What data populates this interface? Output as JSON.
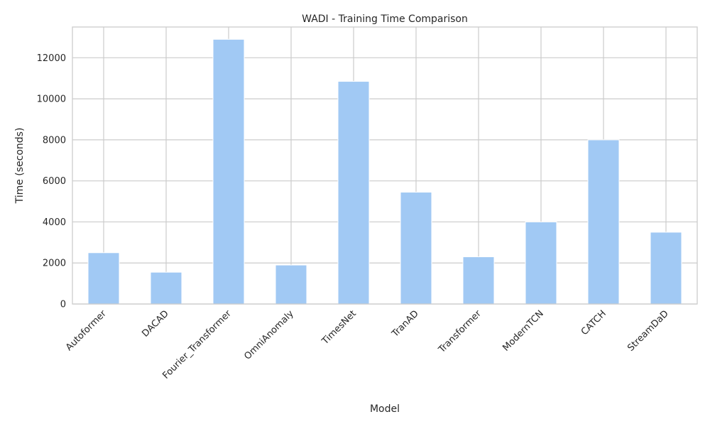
{
  "chart_data": {
    "type": "bar",
    "title": "WADI - Training Time Comparison",
    "xlabel": "Model",
    "ylabel": "Time (seconds)",
    "categories": [
      "Autoformer",
      "DACAD",
      "Fourier_Transformer",
      "OmniAnomaly",
      "TimesNet",
      "TranAD",
      "Transformer",
      "ModernTCN",
      "CATCH",
      "StreamDaD"
    ],
    "values": [
      2500,
      1550,
      12900,
      1900,
      10850,
      5450,
      2300,
      4000,
      8000,
      3500
    ],
    "ylim": [
      0,
      13500
    ],
    "yticks": [
      0,
      2000,
      4000,
      6000,
      8000,
      10000,
      12000
    ],
    "grid": true,
    "legend": "none",
    "bar_color": "#a1c9f4",
    "xtick_rotation": 45
  }
}
